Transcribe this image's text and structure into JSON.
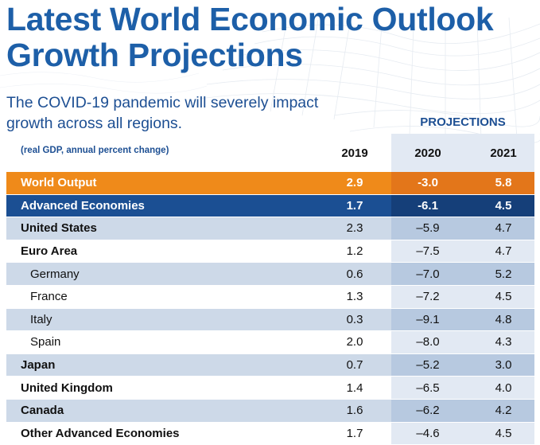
{
  "header": {
    "title_line1": "Latest World Economic Outlook",
    "title_line2": "Growth Projections",
    "subtitle_line1": "The COVID-19 pandemic will severely impact",
    "subtitle_line2": "growth across all regions.",
    "projections_label": "PROJECTIONS",
    "units_note": "(real GDP, annual percent change)"
  },
  "columns": [
    "2019",
    "2020",
    "2021"
  ],
  "rows": [
    {
      "label": "World Output",
      "v2019": "2.9",
      "v2020": "-3.0",
      "v2021": "5.8"
    },
    {
      "label": "Advanced Economies",
      "v2019": "1.7",
      "v2020": "-6.1",
      "v2021": "4.5"
    },
    {
      "label": "United States",
      "v2019": "2.3",
      "v2020": "–5.9",
      "v2021": "4.7"
    },
    {
      "label": "Euro Area",
      "v2019": "1.2",
      "v2020": "–7.5",
      "v2021": "4.7"
    },
    {
      "label": "Germany",
      "v2019": "0.6",
      "v2020": "–7.0",
      "v2021": "5.2"
    },
    {
      "label": "France",
      "v2019": "1.3",
      "v2020": "–7.2",
      "v2021": "4.5"
    },
    {
      "label": "Italy",
      "v2019": "0.3",
      "v2020": "–9.1",
      "v2021": "4.8"
    },
    {
      "label": "Spain",
      "v2019": "2.0",
      "v2020": "–8.0",
      "v2021": "4.3"
    },
    {
      "label": "Japan",
      "v2019": "0.7",
      "v2020": "–5.2",
      "v2021": "3.0"
    },
    {
      "label": "United Kingdom",
      "v2019": "1.4",
      "v2020": "–6.5",
      "v2021": "4.0"
    },
    {
      "label": "Canada",
      "v2019": "1.6",
      "v2020": "–6.2",
      "v2021": "4.2"
    },
    {
      "label": "Other Advanced Economies",
      "v2019": "1.7",
      "v2020": "–4.6",
      "v2021": "4.5"
    }
  ],
  "colors": {
    "title_blue": "#1d5fa8",
    "world_orange": "#ef8a1a",
    "advanced_blue": "#1b4f93",
    "row_shade": "#cdd9e8"
  }
}
